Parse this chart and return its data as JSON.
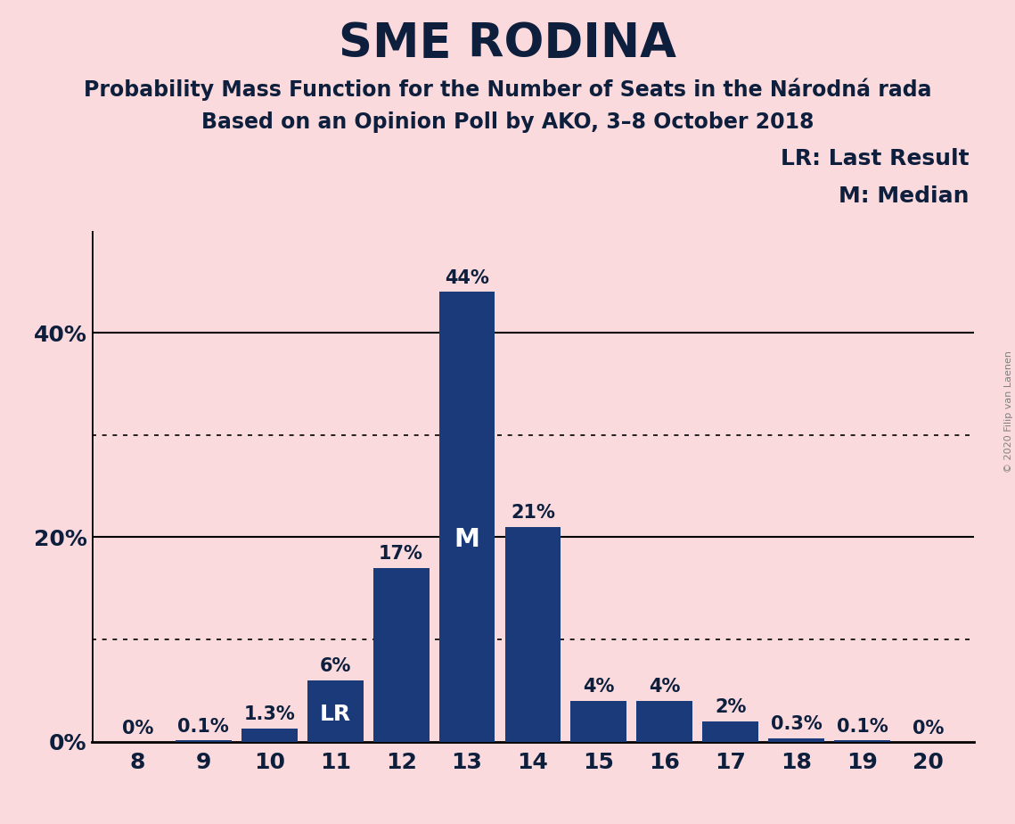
{
  "title": "SME RODINA",
  "subtitle1": "Probability Mass Function for the Number of Seats in the Národná rada",
  "subtitle2": "Based on an Opinion Poll by AKO, 3–8 October 2018",
  "copyright": "© 2020 Filip van Laenen",
  "seats": [
    8,
    9,
    10,
    11,
    12,
    13,
    14,
    15,
    16,
    17,
    18,
    19,
    20
  ],
  "probabilities": [
    0.0,
    0.1,
    1.3,
    6.0,
    17.0,
    44.0,
    21.0,
    4.0,
    4.0,
    2.0,
    0.3,
    0.1,
    0.0
  ],
  "labels": [
    "0%",
    "0.1%",
    "1.3%",
    "6%",
    "17%",
    "44%",
    "21%",
    "4%",
    "4%",
    "2%",
    "0.3%",
    "0.1%",
    "0%"
  ],
  "bar_color": "#1a3a7a",
  "background_color": "#fadadd",
  "text_color": "#0d1f3c",
  "title_fontsize": 38,
  "subtitle_fontsize": 17,
  "label_fontsize": 15,
  "axis_fontsize": 18,
  "ytick_values": [
    0,
    20,
    40
  ],
  "ylim": [
    0,
    50
  ],
  "median_seat": 13,
  "last_result_seat": 11,
  "legend_lr": "LR: Last Result",
  "legend_m": "M: Median"
}
